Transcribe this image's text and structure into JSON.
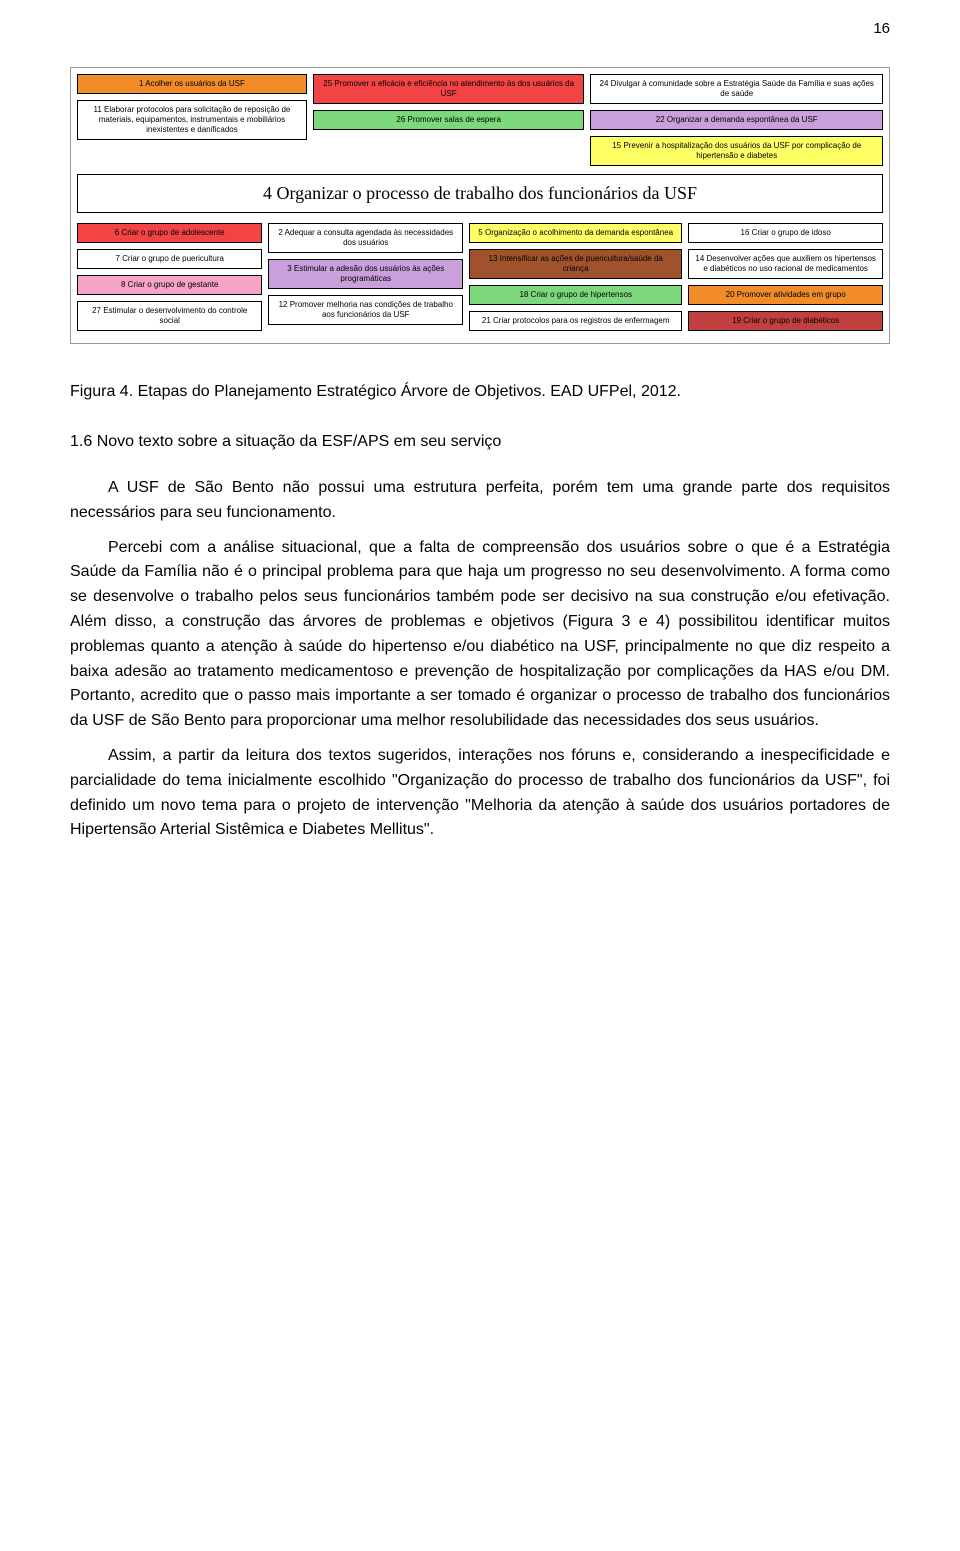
{
  "page_number": "16",
  "caption": "Figura 4. Etapas do Planejamento Estratégico Árvore de Objetivos. EAD UFPel, 2012.",
  "heading": "1.6 Novo texto sobre a situação da ESF/APS em seu serviço",
  "paragraphs": {
    "p1": "A USF de São Bento não possui uma estrutura perfeita, porém tem uma grande parte dos requisitos necessários para seu funcionamento.",
    "p2": "Percebi com a análise situacional, que a falta de compreensão dos usuários sobre o que é a Estratégia Saúde da Família não é o principal problema para que haja um progresso no seu desenvolvimento. A forma como se desenvolve o trabalho pelos seus funcionários também pode ser decisivo na sua construção e/ou efetivação. Além disso, a construção das árvores de problemas e objetivos (Figura 3 e 4) possibilitou identificar muitos problemas quanto a atenção à saúde do hipertenso e/ou diabético na USF, principalmente no que diz respeito a baixa adesão ao tratamento medicamentoso e prevenção de hospitalização por complicações da HAS e/ou DM. Portanto, acredito que o passo mais importante a ser tomado é organizar o processo de trabalho dos funcionários da USF de São Bento para proporcionar uma melhor resolubilidade das necessidades dos seus usuários.",
    "p3": "Assim, a partir da leitura dos textos sugeridos, interações nos fóruns e, considerando a inespecificidade e parcialidade do tema inicialmente escolhido \"Organização do processo de trabalho dos funcionários da USF\", foi definido um novo tema para o projeto de intervenção \"Melhoria da atenção à saúde dos usuários portadores de Hipertensão Arterial Sistêmica e Diabetes Mellitus\"."
  },
  "diagram": {
    "title_box": "4 Organizar o processo de trabalho dos funcionários da USF",
    "top": {
      "c1": {
        "b1": {
          "text": "1 Acolher os usuários da USF",
          "bg": "#f28c28"
        },
        "b11": {
          "text": "11 Elaborar protocolos para solicitação de reposição de materiais, equipamentos, instrumentais e mobiliários inexistentes e danificados",
          "bg": "#ffffff"
        }
      },
      "c2": {
        "b25": {
          "text": "25 Promover a eficácia e eficiência no atendimento às dos usuários da USF",
          "bg": "#f24444"
        },
        "b26": {
          "text": "26 Promover salas de espera",
          "bg": "#7dd87d"
        }
      },
      "c3": {
        "b24": {
          "text": "24 Divulgar à comunidade sobre a Estratégia Saúde da Família e suas ações de saúde",
          "bg": "#ffffff"
        },
        "b22": {
          "text": "22 Organizar a demanda espontânea da USF",
          "bg": "#c9a0dc"
        },
        "b15": {
          "text": "15 Prevenir a hospitalização dos usuários da USF por complicação de hipertensão e diabetes",
          "bg": "#ffff66"
        }
      }
    },
    "bottom": {
      "c1": {
        "b6": {
          "text": "6 Criar o grupo de adolescente",
          "bg": "#f24444"
        },
        "b7": {
          "text": "7 Criar o grupo de puericultura",
          "bg": "#ffffff"
        },
        "b8": {
          "text": "8 Criar o grupo de gestante",
          "bg": "#f5a3c7"
        },
        "b27": {
          "text": "27 Estimular o desenvolvimento do controle social",
          "bg": "#ffffff"
        }
      },
      "c2": {
        "b2": {
          "text": "2 Adequar a consulta agendada às necessidades dos usuários",
          "bg": "#ffffff"
        },
        "b3": {
          "text": "3 Estimular a adesão dos usuários às ações programáticas",
          "bg": "#c9a0dc"
        },
        "b12": {
          "text": "12 Promover melhoria nas condições de trabalho aos funcionários da USF",
          "bg": "#ffffff"
        }
      },
      "c3": {
        "b5": {
          "text": "5 Organização o acolhimento da demanda espontânea",
          "bg": "#ffff66"
        },
        "b13": {
          "text": "13 Intensificar as ações de puericultura/saúde da criança",
          "bg": "#a0522d"
        },
        "b18": {
          "text": "18 Criar o grupo de hipertensos",
          "bg": "#7dd87d"
        },
        "b21": {
          "text": "21 Criar protocolos para os registros de enfermagem",
          "bg": "#ffffff"
        }
      },
      "c4": {
        "b16": {
          "text": "16 Criar o grupo de idoso",
          "bg": "#ffffff"
        },
        "b14": {
          "text": "14 Desenvolver ações que auxiliem os hipertensos e diabéticos no uso racional de medicamentos",
          "bg": "#ffffff"
        },
        "b20": {
          "text": "20 Promover atividades em grupo",
          "bg": "#f28c28"
        },
        "b19": {
          "text": "19 Criar o grupo de diabéticos",
          "bg": "#c04040"
        }
      }
    }
  }
}
